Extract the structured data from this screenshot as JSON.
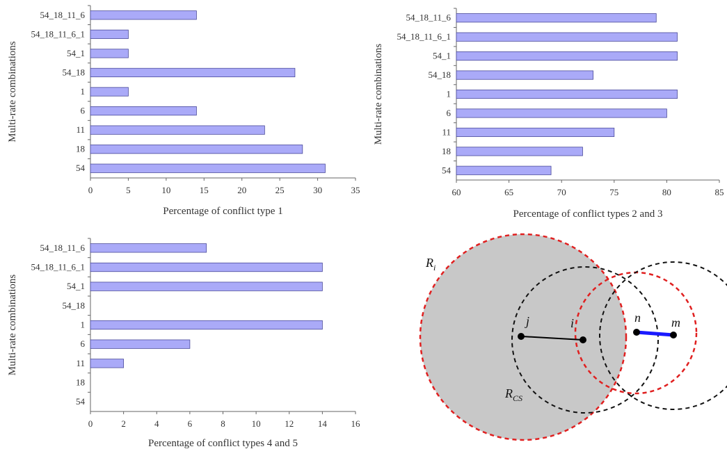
{
  "chart_data": [
    {
      "type": "bar",
      "orientation": "horizontal",
      "categories": [
        "54_18_11_6",
        "54_18_11_6_1",
        "54_1",
        "54_18",
        "1",
        "6",
        "11",
        "18",
        "54"
      ],
      "values": [
        14,
        5,
        5,
        27,
        5,
        14,
        23,
        28,
        31
      ],
      "xlim": [
        0,
        35
      ],
      "xticks": [
        "0",
        "5",
        "10",
        "15",
        "20",
        "25",
        "30",
        "35"
      ],
      "xlabel": "Percentage of conflict type 1",
      "ylabel": "Multi-rate combinations",
      "bar_color": "#aaaaf8"
    },
    {
      "type": "bar",
      "orientation": "horizontal",
      "categories": [
        "54_18_11_6",
        "54_18_11_6_1",
        "54_1",
        "54_18",
        "1",
        "6",
        "11",
        "18",
        "54"
      ],
      "values": [
        79,
        81,
        81,
        73,
        81,
        80,
        75,
        72,
        69
      ],
      "xlim": [
        60,
        85
      ],
      "xticks": [
        "60",
        "65",
        "70",
        "75",
        "80",
        "85"
      ],
      "xlabel": "Percentage of conflict types 2 and 3",
      "ylabel": "Multi-rate combinations",
      "bar_color": "#aaaaf8"
    },
    {
      "type": "bar",
      "orientation": "horizontal",
      "categories": [
        "54_18_11_6",
        "54_18_11_6_1",
        "54_1",
        "54_18",
        "1",
        "6",
        "11",
        "18",
        "54"
      ],
      "values": [
        7,
        14,
        14,
        0,
        14,
        6,
        2,
        0,
        0
      ],
      "xlim": [
        0,
        16
      ],
      "xticks": [
        "0",
        "2",
        "4",
        "6",
        "8",
        "10",
        "12",
        "14",
        "16"
      ],
      "xlabel": "Percentage of conflict types 4 and 5",
      "ylabel": "Multi-rate combinations",
      "bar_color": "#aaaaf8"
    }
  ],
  "diagram": {
    "labels": {
      "ri_main": "R",
      "ri_sub": "i",
      "rcs_main": "R",
      "rcs_sub": "CS",
      "node_j": "j",
      "node_i": "i",
      "node_n": "n",
      "node_m": "m"
    },
    "colors": {
      "shaded_area": "#c8c8c8",
      "red_dashed": "#e02020",
      "black_dashed": "#111111",
      "link_j_i": "#000000",
      "link_n_m": "#1a1aff"
    }
  }
}
